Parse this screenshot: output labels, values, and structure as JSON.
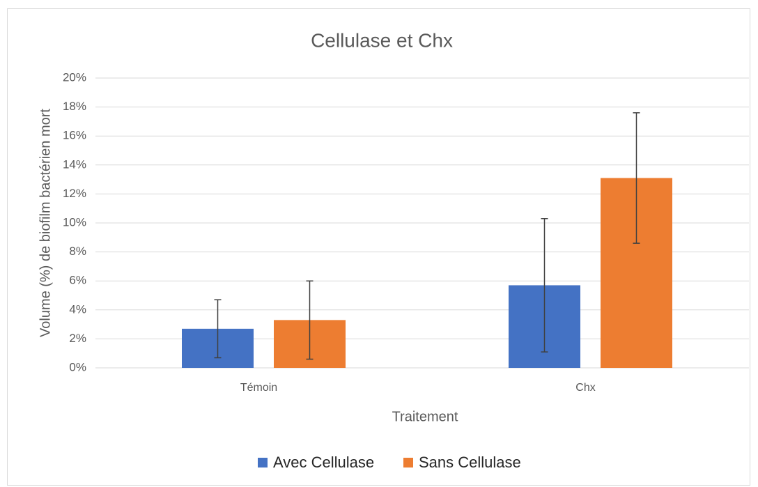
{
  "chart_data": {
    "type": "bar",
    "title": "Cellulase et Chx",
    "x_label": "Traitement",
    "y_label": "Volume (%) de biofilm bactérien mort",
    "categories": [
      "Témoin",
      "Chx"
    ],
    "series": [
      {
        "name": "Avec Cellulase",
        "color": "#4472c4",
        "values": [
          2.7,
          5.7
        ],
        "errors": [
          2.0,
          4.6
        ]
      },
      {
        "name": "Sans Cellulase",
        "color": "#ed7d31",
        "values": [
          3.3,
          13.1
        ],
        "errors": [
          2.7,
          4.5
        ]
      }
    ],
    "ylim": [
      0,
      20
    ],
    "yticks": [
      {
        "value": 0,
        "label": "0%"
      },
      {
        "value": 2,
        "label": "2%"
      },
      {
        "value": 4,
        "label": "4%"
      },
      {
        "value": 6,
        "label": "6%"
      },
      {
        "value": 8,
        "label": "8%"
      },
      {
        "value": 10,
        "label": "10%"
      },
      {
        "value": 12,
        "label": "12%"
      },
      {
        "value": 14,
        "label": "14%"
      },
      {
        "value": 16,
        "label": "16%"
      },
      {
        "value": 18,
        "label": "18%"
      },
      {
        "value": 20,
        "label": "20%"
      }
    ],
    "grid": true,
    "legend": "bottom"
  }
}
